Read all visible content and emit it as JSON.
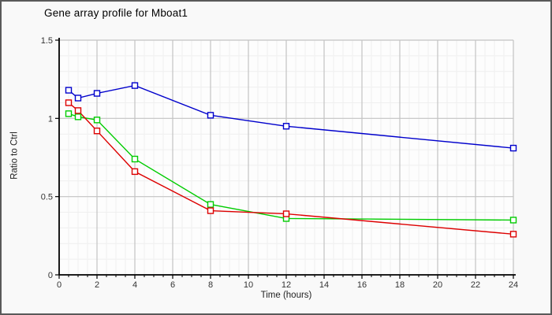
{
  "window": {
    "background": "#f9f9f9",
    "border_color": "#5a5a5a"
  },
  "chart_data": {
    "type": "line",
    "title": "Gene array profile for Mboat1",
    "xlabel": "Time (hours)",
    "ylabel": "Ratio to Ctrl",
    "xlim": [
      0,
      24
    ],
    "ylim": [
      0,
      1.5
    ],
    "x_major_ticks": [
      0,
      2,
      4,
      6,
      8,
      10,
      12,
      14,
      16,
      18,
      20,
      22,
      24
    ],
    "x_tick_labels": [
      "0",
      "2",
      "4",
      "6",
      "8",
      "10",
      "12",
      "14",
      "16",
      "18",
      "20",
      "22",
      "24"
    ],
    "x_minor_step": 0.5,
    "y_major_ticks": [
      0,
      0.5,
      1,
      1.5
    ],
    "y_tick_labels": [
      "0",
      "0.5",
      "1",
      "1.5"
    ],
    "y_minor_step": 0.1,
    "grid": "on",
    "legend": "none",
    "marker": "open-square",
    "x": [
      0.5,
      1,
      2,
      4,
      8,
      12,
      24
    ],
    "series": [
      {
        "name": "green",
        "color": "#00cc00",
        "values": [
          1.03,
          1.01,
          0.99,
          0.74,
          0.45,
          0.36,
          0.35
        ]
      },
      {
        "name": "red",
        "color": "#dd0000",
        "values": [
          1.1,
          1.05,
          0.92,
          0.66,
          0.41,
          0.39,
          0.26
        ]
      },
      {
        "name": "blue",
        "color": "#0000cc",
        "values": [
          1.18,
          1.13,
          1.16,
          1.21,
          1.02,
          0.95,
          0.81
        ]
      }
    ],
    "colors": {
      "figure_bg": "#f9f9f9",
      "plot_bg": "#fdfdfd",
      "border": "#5a5a5a",
      "grid_major": "#c3c3c3",
      "grid_minor": "#efefef",
      "axis": "#000000",
      "tick_text": "#333333"
    }
  }
}
